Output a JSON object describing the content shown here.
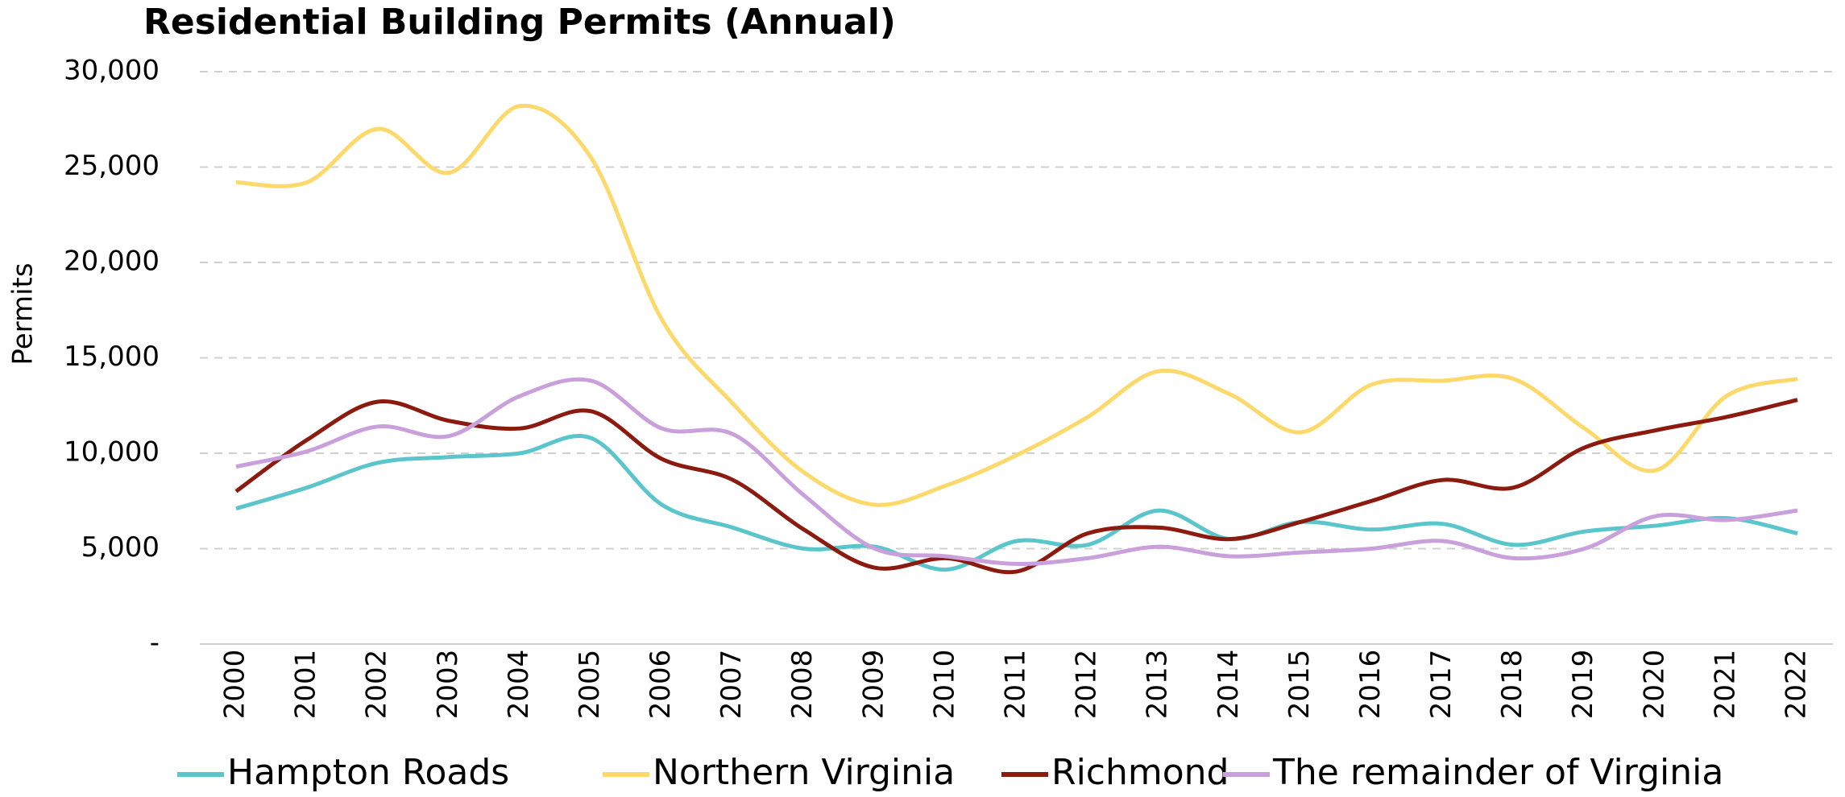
{
  "chart_data": {
    "type": "line",
    "title": "Residential Building Permits (Annual)",
    "y_label": "Permits",
    "categories": [
      "2000",
      "2001",
      "2002",
      "2003",
      "2004",
      "2005",
      "2006",
      "2007",
      "2008",
      "2009",
      "2010",
      "2011",
      "2012",
      "2013",
      "2014",
      "2015",
      "2016",
      "2017",
      "2018",
      "2019",
      "2020",
      "2021",
      "2022"
    ],
    "series": [
      {
        "name": "Hampton Roads",
        "color": "#5bc5cc",
        "values": [
          7100,
          8200,
          9500,
          9800,
          10000,
          10800,
          7300,
          6100,
          5000,
          5100,
          3900,
          5400,
          5200,
          7000,
          5500,
          6400,
          6000,
          6300,
          5200,
          5900,
          6200,
          6600,
          5800
        ]
      },
      {
        "name": "Northern Virginia",
        "color": "#fcd96a",
        "values": [
          24200,
          24200,
          27000,
          24700,
          28200,
          25500,
          17000,
          12600,
          9000,
          7300,
          8300,
          9900,
          11900,
          14300,
          13100,
          11100,
          13600,
          13800,
          13900,
          11300,
          9100,
          13000,
          13900
        ]
      },
      {
        "name": "Richmond",
        "color": "#8b1a0f",
        "values": [
          8000,
          10700,
          12700,
          11700,
          11300,
          12200,
          9700,
          8600,
          6000,
          4000,
          4500,
          3800,
          5800,
          6100,
          5500,
          6400,
          7500,
          8600,
          8200,
          10300,
          11200,
          11900,
          12800
        ]
      },
      {
        "name": "The remainder of Virginia",
        "color": "#c9a0dc",
        "values": [
          9300,
          10100,
          11400,
          10900,
          13000,
          13800,
          11300,
          11000,
          7800,
          5000,
          4600,
          4200,
          4500,
          5100,
          4600,
          4800,
          5000,
          5400,
          4500,
          5000,
          6700,
          6500,
          7000
        ]
      }
    ],
    "ylim": [
      0,
      30000
    ],
    "yticks": [
      {
        "value": 0,
        "label": "-"
      },
      {
        "value": 5000,
        "label": "5,000"
      },
      {
        "value": 10000,
        "label": "10,000"
      },
      {
        "value": 15000,
        "label": "15,000"
      },
      {
        "value": 20000,
        "label": "20,000"
      },
      {
        "value": 25000,
        "label": "25,000"
      },
      {
        "value": 30000,
        "label": "30,000"
      }
    ],
    "grid": true
  }
}
